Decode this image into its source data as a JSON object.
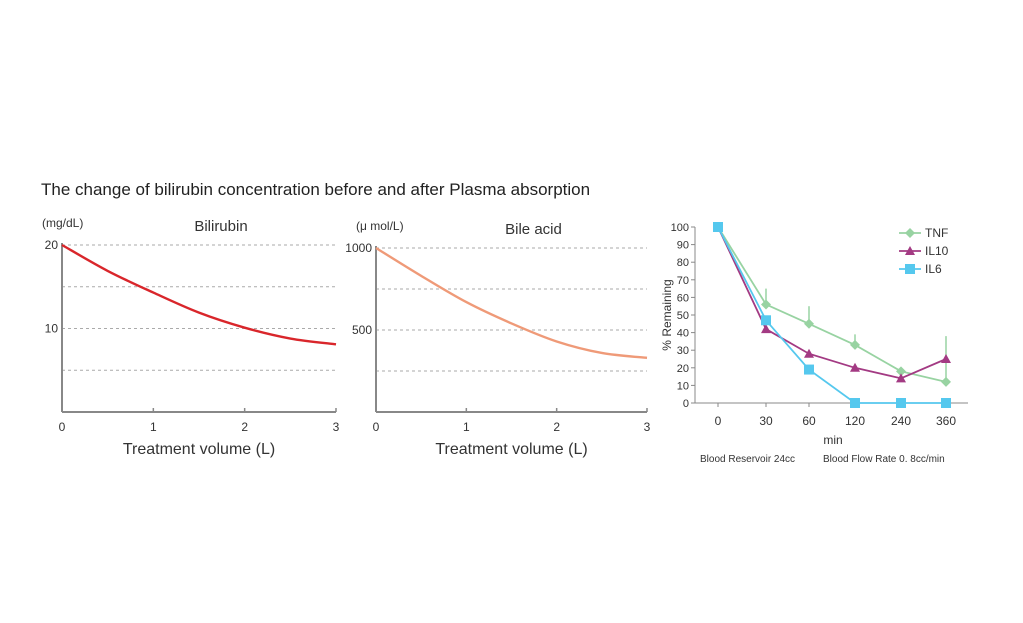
{
  "page_title": "The change of bilirubin concentration before and after Plasma absorption",
  "colors": {
    "bilirubin_curve": "#d9262b",
    "bile_curve": "#ef9a78",
    "tnf": "#98d3a2",
    "il10": "#a33a83",
    "il6": "#55c8ee",
    "axis": "#888888",
    "grid": "#aaaaaa"
  },
  "chart_data": [
    {
      "type": "line",
      "title": "Bilirubin",
      "unit_label": "(mg/dL)",
      "xlabel": "Treatment volume (L)",
      "ylabel": "",
      "x_ticks": [
        "0",
        "1",
        "2",
        "3"
      ],
      "y_ticks": [
        "20",
        "10"
      ],
      "xlim": [
        0,
        3
      ],
      "ylim": [
        0,
        20
      ],
      "grid_y": [
        5,
        10,
        15,
        20
      ],
      "grid": "dashed horizontal",
      "series": [
        {
          "x": [
            0,
            0.5,
            1,
            1.5,
            2,
            2.5,
            3
          ],
          "y": [
            20,
            16.9,
            14.3,
            11.9,
            10.1,
            8.8,
            8.1
          ]
        }
      ]
    },
    {
      "type": "line",
      "title": "Bile acid",
      "unit_label": "(μ mol/L)",
      "xlabel": "Treatment volume (L)",
      "ylabel": "",
      "x_ticks": [
        "0",
        "1",
        "2",
        "3"
      ],
      "y_ticks": [
        "1000",
        "500"
      ],
      "xlim": [
        0,
        3
      ],
      "ylim": [
        0,
        1000
      ],
      "grid_y": [
        250,
        500,
        750,
        1000
      ],
      "grid": "dashed horizontal",
      "series": [
        {
          "x": [
            0,
            0.5,
            1,
            1.5,
            2,
            2.5,
            3
          ],
          "y": [
            1000,
            830,
            670,
            540,
            430,
            360,
            330
          ]
        }
      ]
    },
    {
      "type": "line",
      "title": "",
      "xlabel": "min",
      "ylabel": "% Remaining",
      "categories": [
        "0",
        "30",
        "60",
        "120",
        "240",
        "360"
      ],
      "y_ticks": [
        "0",
        "10",
        "20",
        "30",
        "40",
        "50",
        "60",
        "70",
        "80",
        "90",
        "100"
      ],
      "ylim": [
        0,
        100
      ],
      "legend_position": "top-right",
      "notes": [
        "Blood Reservoir 24cc",
        "Blood Flow Rate 0. 8cc/min"
      ],
      "series": [
        {
          "name": "TNF",
          "marker": "diamond",
          "values": [
            100,
            56,
            45,
            33,
            18,
            12
          ],
          "error_upper": [
            null,
            65,
            55,
            39,
            null,
            38
          ]
        },
        {
          "name": "IL10",
          "marker": "triangle",
          "values": [
            100,
            42,
            28,
            20,
            14,
            25
          ]
        },
        {
          "name": "IL6",
          "marker": "square",
          "values": [
            100,
            47,
            19,
            0,
            0,
            0
          ]
        }
      ]
    }
  ]
}
